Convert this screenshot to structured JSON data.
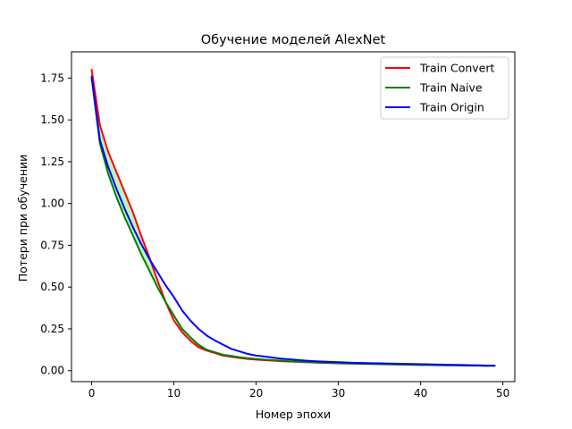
{
  "chart_data": {
    "type": "line",
    "title": "Обучение моделей AlexNet",
    "xlabel": "Номер эпохи",
    "ylabel": "Потери при обучении",
    "xlim": [
      -2.45,
      51.45
    ],
    "ylim": [
      -0.0655,
      1.907
    ],
    "x_ticks": [
      0,
      10,
      20,
      30,
      40,
      50
    ],
    "y_ticks": [
      0.0,
      0.25,
      0.5,
      0.75,
      1.0,
      1.25,
      1.5,
      1.75
    ],
    "x_tick_labels": [
      "0",
      "10",
      "20",
      "30",
      "40",
      "50"
    ],
    "y_tick_labels": [
      "0.00",
      "0.25",
      "0.50",
      "0.75",
      "1.00",
      "1.25",
      "1.50",
      "1.75"
    ],
    "grid": false,
    "legend_position": "top-right",
    "x": [
      0,
      1,
      2,
      3,
      4,
      5,
      6,
      7,
      8,
      9,
      10,
      11,
      12,
      13,
      14,
      15,
      16,
      17,
      18,
      19,
      20,
      21,
      22,
      23,
      24,
      25,
      26,
      27,
      28,
      29,
      30,
      31,
      32,
      33,
      34,
      35,
      36,
      37,
      38,
      39,
      40,
      41,
      42,
      43,
      44,
      45,
      46,
      47,
      48,
      49
    ],
    "series": [
      {
        "name": "Train Convert",
        "color": "#ff0000",
        "values": [
          1.8,
          1.47,
          1.31,
          1.19,
          1.07,
          0.95,
          0.81,
          0.68,
          0.54,
          0.41,
          0.3,
          0.23,
          0.18,
          0.14,
          0.12,
          0.105,
          0.09,
          0.083,
          0.076,
          0.07,
          0.066,
          0.063,
          0.06,
          0.057,
          0.055,
          0.053,
          0.051,
          0.049,
          0.047,
          0.046,
          0.045,
          0.044,
          0.043,
          0.042,
          0.041,
          0.04,
          0.039,
          0.038,
          0.037,
          0.036,
          0.035,
          0.035,
          0.034,
          0.033,
          0.033,
          0.032,
          0.031,
          0.031,
          0.03,
          0.03
        ]
      },
      {
        "name": "Train Naive",
        "color": "#008000",
        "values": [
          1.75,
          1.36,
          1.18,
          1.04,
          0.92,
          0.81,
          0.7,
          0.6,
          0.5,
          0.41,
          0.33,
          0.25,
          0.2,
          0.155,
          0.125,
          0.11,
          0.095,
          0.088,
          0.08,
          0.075,
          0.07,
          0.066,
          0.063,
          0.06,
          0.057,
          0.054,
          0.052,
          0.05,
          0.048,
          0.046,
          0.044,
          0.043,
          0.042,
          0.041,
          0.04,
          0.039,
          0.038,
          0.037,
          0.036,
          0.035,
          0.034,
          0.034,
          0.033,
          0.032,
          0.032,
          0.031,
          0.03,
          0.03,
          0.029,
          0.029
        ]
      },
      {
        "name": "Train Origin",
        "color": "#0000ff",
        "values": [
          1.76,
          1.38,
          1.22,
          1.09,
          0.97,
          0.86,
          0.76,
          0.67,
          0.59,
          0.51,
          0.44,
          0.36,
          0.3,
          0.25,
          0.21,
          0.18,
          0.155,
          0.13,
          0.115,
          0.1,
          0.09,
          0.085,
          0.078,
          0.072,
          0.068,
          0.064,
          0.06,
          0.057,
          0.055,
          0.053,
          0.051,
          0.049,
          0.047,
          0.046,
          0.045,
          0.044,
          0.043,
          0.042,
          0.041,
          0.04,
          0.039,
          0.038,
          0.037,
          0.036,
          0.035,
          0.034,
          0.033,
          0.032,
          0.031,
          0.031
        ]
      }
    ],
    "band": {
      "between": [
        "Train Naive",
        "Train Convert"
      ],
      "color": "#90ee90",
      "opacity": 0.6
    }
  }
}
